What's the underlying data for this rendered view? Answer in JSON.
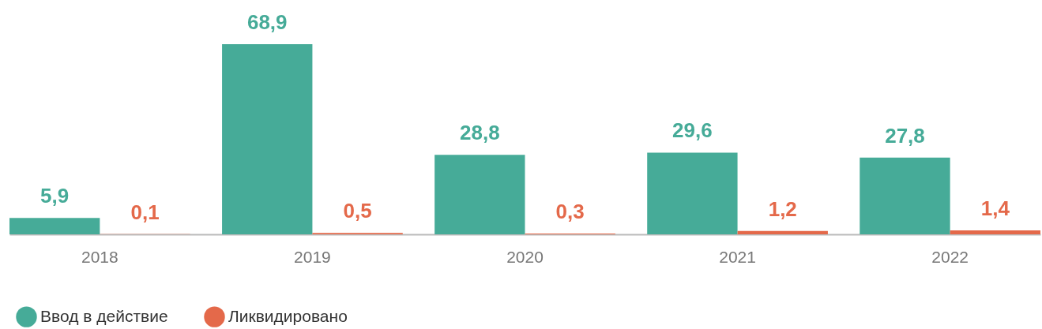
{
  "chart_data": {
    "type": "bar",
    "categories": [
      "2018",
      "2019",
      "2020",
      "2021",
      "2022"
    ],
    "series": [
      {
        "name": "Ввод в действие",
        "color": "#46ab98",
        "values": [
          5.9,
          68.9,
          28.8,
          29.6,
          27.8
        ],
        "value_labels": [
          "5,9",
          "68,9",
          "28,8",
          "29,6",
          "27,8"
        ]
      },
      {
        "name": "Ликвидировано",
        "color": "#e4694a",
        "values": [
          0.1,
          0.5,
          0.3,
          1.2,
          1.4
        ],
        "value_labels": [
          "0,1",
          "0,5",
          "0,3",
          "1,2",
          "1,4"
        ]
      }
    ],
    "data_labels": true,
    "legend": "bottom left",
    "grid": false
  }
}
